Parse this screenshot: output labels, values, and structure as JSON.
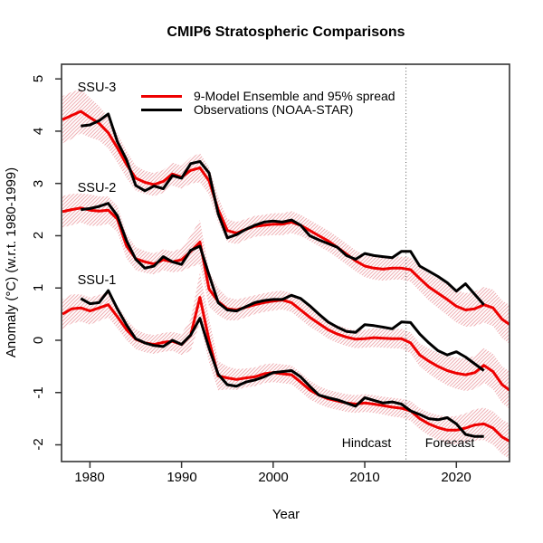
{
  "title": "CMIP6 Stratospheric Comparisons",
  "chart_data": {
    "type": "line",
    "title": "CMIP6 Stratospheric Comparisons",
    "xlabel": "Year",
    "ylabel": "Anomaly (°C) (w.r.t. 1980-1999)",
    "x_ticks": [
      1980,
      1990,
      2000,
      2010,
      2020
    ],
    "x_tick_labels": [
      "1980",
      "1990",
      "2000",
      "2010",
      "2020"
    ],
    "y_ticks": [
      5,
      4,
      3,
      2,
      1,
      0,
      -1,
      -2
    ],
    "y_tick_labels": [
      "5",
      "4",
      "3",
      "2",
      "1",
      "0",
      "-1",
      "-2"
    ],
    "xlim": [
      1976.9,
      2025.8
    ],
    "ylim": [
      -2.32,
      5.28
    ],
    "grid": false,
    "colors": {
      "model": "#ee0000",
      "obs": "#000000",
      "band": "#f0b2b6",
      "divider": "#555555"
    },
    "legend": {
      "position": "top-inside",
      "entries": [
        {
          "label": "9-Model Ensemble and 95% spread",
          "color": "#ee0000"
        },
        {
          "label": "Observations (NOAA-STAR)",
          "color": "#000000"
        }
      ]
    },
    "panel_labels": [
      "SSU-3",
      "SSU-2",
      "SSU-1"
    ],
    "annotations": {
      "hindcast": "Hindcast",
      "forecast": "Forecast",
      "divider_year": 2014.5,
      "divider_style": "dotted"
    },
    "series": [
      {
        "name": "SSU-3 model ensemble",
        "role": "model",
        "color": "#ee0000",
        "start_year": 1977,
        "values": [
          4.22,
          4.3,
          4.38,
          4.26,
          4.15,
          3.97,
          3.68,
          3.36,
          3.1,
          3.02,
          2.98,
          3.04,
          3.18,
          3.12,
          3.25,
          3.3,
          3.05,
          2.5,
          2.1,
          2.05,
          2.12,
          2.18,
          2.2,
          2.22,
          2.22,
          2.26,
          2.2,
          2.1,
          2.0,
          1.9,
          1.78,
          1.65,
          1.52,
          1.42,
          1.38,
          1.36,
          1.38,
          1.38,
          1.35,
          1.18,
          1.02,
          0.9,
          0.78,
          0.65,
          0.58,
          0.6,
          0.68,
          0.62,
          0.4,
          0.28
        ],
        "spread_halfwidth": [
          0.45,
          0.45,
          0.42,
          0.38,
          0.33,
          0.3,
          0.28,
          0.26,
          0.24,
          0.22,
          0.22,
          0.22,
          0.22,
          0.22,
          0.25,
          0.28,
          0.26,
          0.24,
          0.22,
          0.21,
          0.2,
          0.2,
          0.2,
          0.21,
          0.21,
          0.21,
          0.2,
          0.2,
          0.2,
          0.2,
          0.2,
          0.2,
          0.2,
          0.21,
          0.22,
          0.22,
          0.22,
          0.22,
          0.23,
          0.24,
          0.26,
          0.28,
          0.3,
          0.31,
          0.32,
          0.33,
          0.34,
          0.35,
          0.36,
          0.37
        ]
      },
      {
        "name": "SSU-3 observations",
        "role": "obs",
        "color": "#000000",
        "start_year": 1979,
        "values": [
          4.1,
          4.12,
          4.2,
          4.33,
          3.8,
          3.45,
          2.96,
          2.86,
          2.95,
          2.9,
          3.15,
          3.1,
          3.38,
          3.42,
          3.2,
          2.42,
          1.96,
          2.02,
          2.12,
          2.2,
          2.26,
          2.28,
          2.26,
          2.3,
          2.2,
          2.0,
          1.92,
          1.85,
          1.78,
          1.62,
          1.55,
          1.66,
          1.62,
          1.6,
          1.58,
          1.7,
          1.7,
          1.42,
          1.32,
          1.22,
          1.1,
          0.94,
          1.08,
          0.88,
          0.68
        ]
      },
      {
        "name": "SSU-2 model ensemble",
        "role": "model",
        "color": "#ee0000",
        "start_year": 1977,
        "values": [
          2.46,
          2.5,
          2.53,
          2.49,
          2.47,
          2.49,
          2.32,
          1.8,
          1.56,
          1.5,
          1.46,
          1.54,
          1.5,
          1.54,
          1.7,
          1.88,
          0.98,
          0.74,
          0.6,
          0.58,
          0.63,
          0.68,
          0.72,
          0.75,
          0.77,
          0.72,
          0.58,
          0.44,
          0.32,
          0.2,
          0.12,
          0.06,
          0.02,
          0.03,
          0.05,
          0.04,
          0.03,
          0.03,
          -0.05,
          -0.28,
          -0.4,
          -0.5,
          -0.58,
          -0.63,
          -0.66,
          -0.62,
          -0.48,
          -0.6,
          -0.85,
          -0.98
        ],
        "spread_halfwidth": [
          0.3,
          0.3,
          0.28,
          0.3,
          0.28,
          0.26,
          0.25,
          0.24,
          0.22,
          0.21,
          0.2,
          0.2,
          0.2,
          0.22,
          0.3,
          0.42,
          0.34,
          0.26,
          0.22,
          0.2,
          0.19,
          0.18,
          0.18,
          0.18,
          0.18,
          0.18,
          0.18,
          0.18,
          0.17,
          0.17,
          0.17,
          0.17,
          0.17,
          0.17,
          0.18,
          0.18,
          0.18,
          0.19,
          0.2,
          0.22,
          0.24,
          0.26,
          0.28,
          0.3,
          0.31,
          0.32,
          0.33,
          0.34,
          0.35,
          0.36
        ]
      },
      {
        "name": "SSU-2 observations",
        "role": "obs",
        "color": "#000000",
        "start_year": 1979,
        "values": [
          2.5,
          2.52,
          2.56,
          2.62,
          2.38,
          1.9,
          1.55,
          1.38,
          1.42,
          1.6,
          1.5,
          1.45,
          1.72,
          1.8,
          1.25,
          0.72,
          0.58,
          0.56,
          0.64,
          0.72,
          0.76,
          0.78,
          0.78,
          0.86,
          0.8,
          0.66,
          0.5,
          0.35,
          0.25,
          0.17,
          0.15,
          0.3,
          0.28,
          0.25,
          0.22,
          0.35,
          0.34,
          0.12,
          -0.05,
          -0.2,
          -0.28,
          -0.22,
          -0.32,
          -0.45,
          -0.58
        ]
      },
      {
        "name": "SSU-1 model ensemble",
        "role": "model",
        "color": "#ee0000",
        "start_year": 1977,
        "values": [
          0.5,
          0.6,
          0.62,
          0.56,
          0.62,
          0.68,
          0.45,
          0.2,
          0.02,
          -0.05,
          -0.08,
          -0.04,
          -0.02,
          -0.08,
          0.1,
          0.82,
          0.0,
          -0.68,
          -0.72,
          -0.75,
          -0.72,
          -0.7,
          -0.64,
          -0.62,
          -0.64,
          -0.66,
          -0.8,
          -0.95,
          -1.05,
          -1.12,
          -1.16,
          -1.2,
          -1.22,
          -1.2,
          -1.22,
          -1.25,
          -1.28,
          -1.3,
          -1.35,
          -1.5,
          -1.6,
          -1.67,
          -1.72,
          -1.72,
          -1.68,
          -1.62,
          -1.6,
          -1.68,
          -1.85,
          -1.95
        ],
        "spread_halfwidth": [
          0.28,
          0.28,
          0.26,
          0.26,
          0.25,
          0.24,
          0.22,
          0.2,
          0.19,
          0.18,
          0.18,
          0.18,
          0.18,
          0.2,
          0.3,
          0.48,
          0.42,
          0.28,
          0.22,
          0.2,
          0.18,
          0.18,
          0.18,
          0.18,
          0.18,
          0.18,
          0.18,
          0.18,
          0.17,
          0.17,
          0.17,
          0.17,
          0.17,
          0.17,
          0.17,
          0.17,
          0.18,
          0.18,
          0.19,
          0.2,
          0.22,
          0.24,
          0.26,
          0.27,
          0.28,
          0.3,
          0.31,
          0.32,
          0.33,
          0.34
        ]
      },
      {
        "name": "SSU-1 observations",
        "role": "obs",
        "color": "#000000",
        "start_year": 1979,
        "values": [
          0.8,
          0.7,
          0.72,
          0.95,
          0.6,
          0.29,
          0.03,
          -0.05,
          -0.1,
          -0.12,
          0.0,
          -0.08,
          0.1,
          0.42,
          -0.15,
          -0.65,
          -0.85,
          -0.88,
          -0.8,
          -0.76,
          -0.7,
          -0.62,
          -0.6,
          -0.58,
          -0.7,
          -0.88,
          -1.05,
          -1.1,
          -1.14,
          -1.2,
          -1.26,
          -1.1,
          -1.15,
          -1.2,
          -1.18,
          -1.22,
          -1.35,
          -1.42,
          -1.5,
          -1.52,
          -1.48,
          -1.6,
          -1.8,
          -1.84,
          -1.84
        ]
      }
    ]
  }
}
